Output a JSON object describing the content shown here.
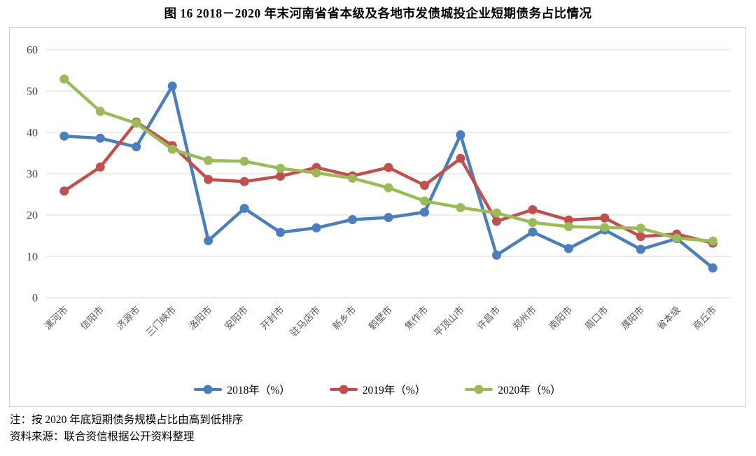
{
  "figure": {
    "number_label": "图 16",
    "title": "图 16  2018－2020 年末河南省省本级及各地市发债城投企业短期债务占比情况",
    "note_sort": "注：按 2020 年底短期债务规模占比由高到低排序",
    "note_source": "资料来源：联合资信根据公开资料整理"
  },
  "chart_data": {
    "type": "line",
    "title": "图 16  2018－2020 年末河南省省本级及各地市发债城投企业短期债务占比情况",
    "xlabel": "",
    "ylabel": "",
    "ylim": [
      0,
      60
    ],
    "yticks": [
      0,
      10,
      20,
      30,
      40,
      50,
      60
    ],
    "grid": "horizontal-only",
    "gridline_color": "#d9d9d9",
    "axis_text_color": "#595959",
    "ytick_text_color": "#404040",
    "x_label_rotation": -45,
    "legend_position": "bottom",
    "categories": [
      "漯河市",
      "信阳市",
      "济源市",
      "三门峡市",
      "洛阳市",
      "安阳市",
      "开封市",
      "驻马店市",
      "新乡市",
      "鹤壁市",
      "焦作市",
      "平顶山市",
      "许昌市",
      "郑州市",
      "南阳市",
      "周口市",
      "濮阳市",
      "省本级",
      "商丘市"
    ],
    "series": [
      {
        "name": "2018年（%）",
        "color": "#4a7ebd",
        "values": [
          39.1,
          38.6,
          36.5,
          51.2,
          13.8,
          21.6,
          15.8,
          16.9,
          18.9,
          19.4,
          20.7,
          39.4,
          10.3,
          15.9,
          11.9,
          16.4,
          11.7,
          14.3,
          7.2
        ]
      },
      {
        "name": "2019年（%）",
        "color": "#c0504d",
        "values": [
          25.8,
          31.6,
          42.5,
          36.8,
          28.6,
          28.1,
          29.4,
          31.5,
          29.5,
          31.5,
          27.2,
          33.7,
          18.5,
          21.3,
          18.8,
          19.3,
          14.8,
          15.4,
          13.2
        ]
      },
      {
        "name": "2020年（%）",
        "color": "#9bbb59",
        "values": [
          52.9,
          45.1,
          42.2,
          35.9,
          33.2,
          33.0,
          31.3,
          30.2,
          28.9,
          26.6,
          23.4,
          21.8,
          20.5,
          18.2,
          17.2,
          17.0,
          16.8,
          14.4,
          13.7
        ]
      }
    ]
  }
}
